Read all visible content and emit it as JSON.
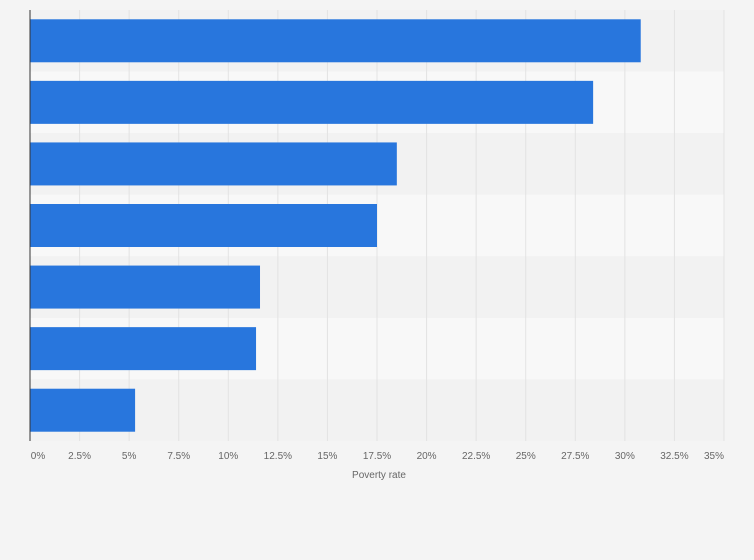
{
  "chart_data": {
    "type": "bar",
    "orientation": "horizontal",
    "categories": [
      "",
      "",
      "",
      "",
      "",
      "",
      ""
    ],
    "values": [
      30.8,
      28.4,
      18.5,
      17.5,
      11.6,
      11.4,
      5.3
    ],
    "xlabel": "Poverty rate",
    "ylabel": "",
    "xlim": [
      0,
      35
    ],
    "x_ticks": [
      0,
      2.5,
      5,
      7.5,
      10,
      12.5,
      15,
      17.5,
      20,
      22.5,
      25,
      27.5,
      30,
      32.5,
      35
    ],
    "tick_labels": [
      "0%",
      "2.5%",
      "5%",
      "7.5%",
      "10%",
      "12.5%",
      "15%",
      "17.5%",
      "20%",
      "22.5%",
      "25%",
      "27.5%",
      "30%",
      "32.5%",
      "35%"
    ],
    "grid": "vertical",
    "colors": {
      "bar": "#2876dd",
      "background": "#f4f4f4",
      "band_light": "#f8f8f8",
      "band_dark": "#f2f2f2",
      "grid": "#e3e3e3",
      "axis": "#333333",
      "text": "#666666"
    }
  }
}
